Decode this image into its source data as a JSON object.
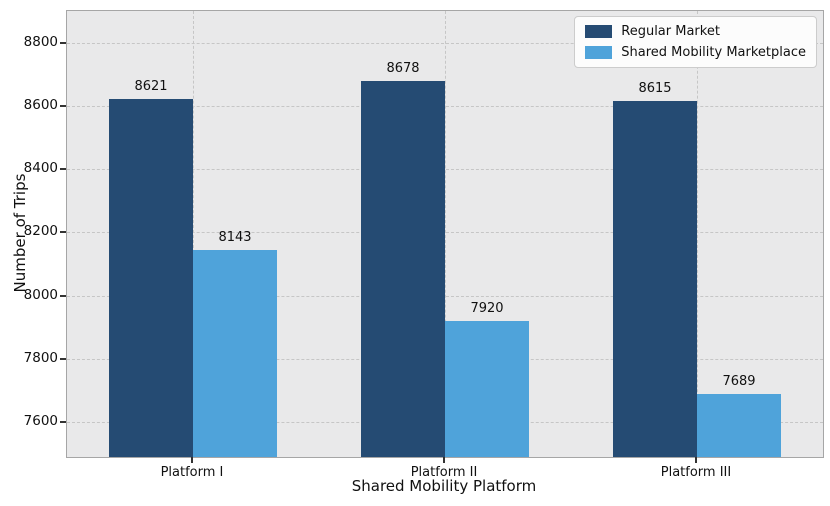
{
  "chart_data": {
    "type": "bar",
    "title": "",
    "xlabel": "Shared Mobility Platform",
    "ylabel": "Number of Trips",
    "categories": [
      "Platform I",
      "Platform II",
      "Platform III"
    ],
    "series": [
      {
        "name": "Regular Market",
        "color": "#254b73",
        "values": [
          8621,
          8678,
          8615
        ]
      },
      {
        "name": "Shared Mobility Marketplace",
        "color": "#4fa3da",
        "values": [
          8143,
          7920,
          7689
        ]
      }
    ],
    "yticks": [
      7600,
      7800,
      8000,
      8200,
      8400,
      8600,
      8800
    ],
    "ylim": [
      7490,
      8900
    ],
    "grid": true,
    "grid_style": "dashed",
    "legend_position": "upper right",
    "bar_value_labels": true,
    "plot_background": "#e9e9ea"
  }
}
